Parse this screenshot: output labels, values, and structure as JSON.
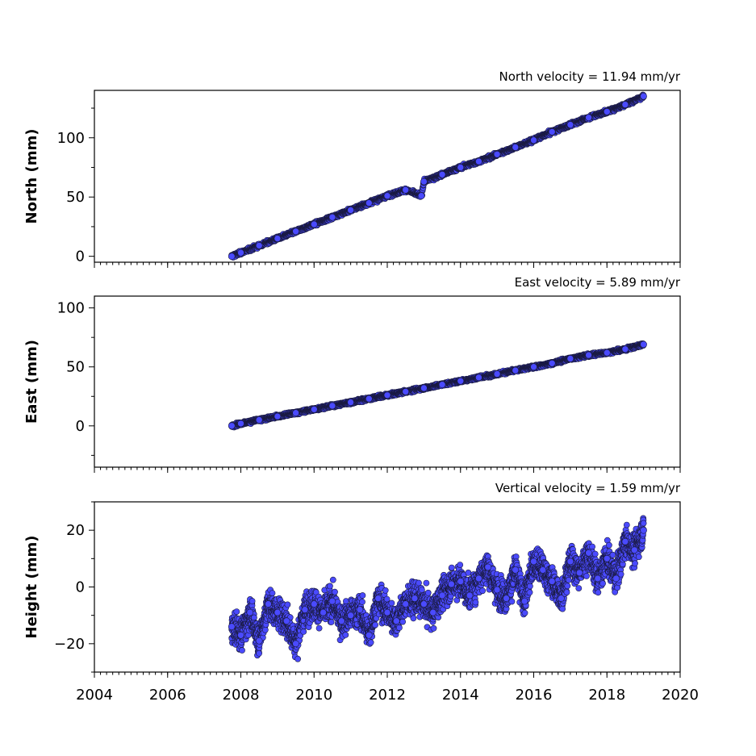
{
  "chart_data": [
    {
      "type": "scatter",
      "title": "North velocity = 11.94 mm/yr",
      "ylabel": "North (mm)",
      "xlim": [
        2004,
        2020
      ],
      "ylim": [
        -5,
        140
      ],
      "yticks": [
        0,
        50,
        100
      ],
      "xticks": [],
      "point_color": "#4a4aff",
      "series": [
        {
          "x": [
            2007.75,
            2008.0,
            2008.5,
            2009.0,
            2009.5,
            2010.0,
            2010.5,
            2011.0,
            2011.5,
            2012.0,
            2012.5,
            2012.93,
            2013.0,
            2013.5,
            2014.0,
            2014.5,
            2015.0,
            2015.5,
            2016.0,
            2016.5,
            2017.0,
            2017.5,
            2018.0,
            2018.5,
            2019.0
          ],
          "y": [
            0,
            3,
            9,
            15,
            21,
            27,
            33,
            39,
            45,
            51,
            56,
            51,
            63,
            69,
            75,
            80,
            86,
            92,
            98,
            105,
            111,
            117,
            122,
            128,
            135
          ]
        }
      ]
    },
    {
      "type": "scatter",
      "title": "East velocity = 5.89 mm/yr",
      "ylabel": "East (mm)",
      "xlim": [
        2004,
        2020
      ],
      "ylim": [
        -35,
        110
      ],
      "yticks": [
        0,
        50,
        100
      ],
      "xticks": [],
      "point_color": "#4a4aff",
      "series": [
        {
          "x": [
            2007.75,
            2008.0,
            2008.5,
            2009.0,
            2009.5,
            2010.0,
            2010.5,
            2011.0,
            2011.5,
            2012.0,
            2012.5,
            2013.0,
            2013.5,
            2014.0,
            2014.5,
            2015.0,
            2015.5,
            2016.0,
            2016.5,
            2017.0,
            2017.5,
            2018.0,
            2018.5,
            2019.0
          ],
          "y": [
            0,
            2,
            5,
            8,
            11,
            14,
            17,
            20,
            23,
            26,
            29,
            32,
            35,
            38,
            41,
            44,
            47,
            50,
            53,
            57,
            60,
            62,
            65,
            69
          ]
        }
      ]
    },
    {
      "type": "scatter",
      "title": "Vertical velocity = 1.59 mm/yr",
      "ylabel": "Height (mm)",
      "xlim": [
        2004,
        2020
      ],
      "ylim": [
        -30,
        30
      ],
      "yticks": [
        -20,
        0,
        20
      ],
      "xticks": [
        2004,
        2006,
        2008,
        2010,
        2012,
        2014,
        2016,
        2018,
        2020
      ],
      "point_color": "#4a4aff",
      "series": [
        {
          "x": [
            2007.75,
            2008.0,
            2008.25,
            2008.5,
            2008.75,
            2009.0,
            2009.25,
            2009.5,
            2009.75,
            2010.0,
            2010.25,
            2010.5,
            2010.75,
            2011.0,
            2011.25,
            2011.5,
            2011.75,
            2012.0,
            2012.25,
            2012.5,
            2012.75,
            2013.0,
            2013.25,
            2013.5,
            2013.75,
            2014.0,
            2014.25,
            2014.5,
            2014.75,
            2015.0,
            2015.25,
            2015.5,
            2015.75,
            2016.0,
            2016.25,
            2016.5,
            2016.75,
            2017.0,
            2017.25,
            2017.5,
            2017.75,
            2018.0,
            2018.25,
            2018.5,
            2018.75,
            2019.0
          ],
          "y": [
            -14,
            -17,
            -9,
            -19,
            -6,
            -9,
            -12,
            -20,
            -8,
            -6,
            -9,
            -5,
            -12,
            -10,
            -8,
            -17,
            -4,
            -9,
            -12,
            -6,
            -4,
            -6,
            -9,
            -3,
            1,
            2,
            -3,
            3,
            7,
            -1,
            -4,
            6,
            -5,
            9,
            6,
            2,
            -4,
            9,
            5,
            12,
            3,
            10,
            3,
            16,
            13,
            20
          ]
        }
      ]
    }
  ]
}
